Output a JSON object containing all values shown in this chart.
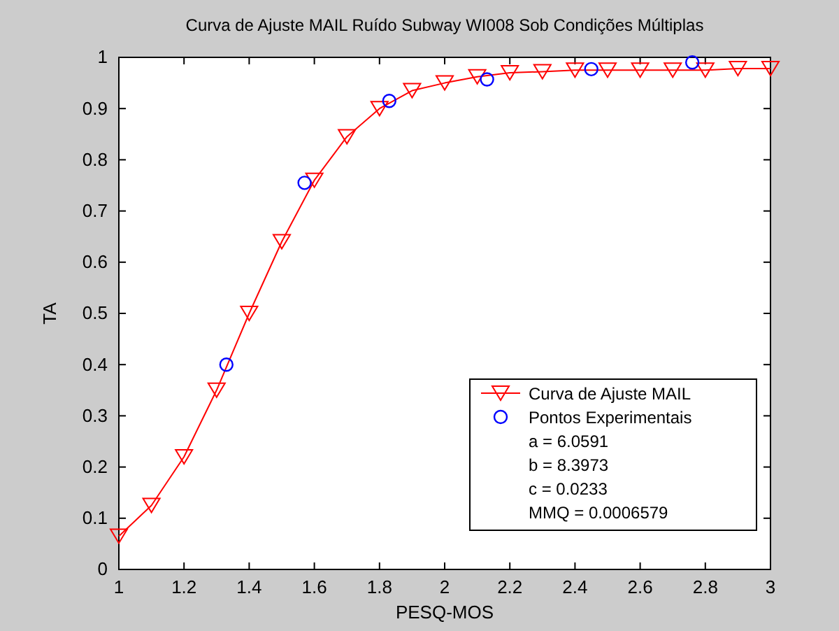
{
  "chart_data": {
    "type": "line",
    "title": "Curva de Ajuste MAIL Ruído Subway WI008 Sob Condições Múltiplas",
    "xlabel": "PESQ-MOS",
    "ylabel": "TA",
    "xlim": [
      1,
      3
    ],
    "xticks": [
      1,
      1.2,
      1.4,
      1.6,
      1.8,
      2,
      2.2,
      2.4,
      2.6,
      2.8,
      3
    ],
    "ylim": [
      0,
      1
    ],
    "yticks": [
      0,
      0.1,
      0.2,
      0.3,
      0.4,
      0.5,
      0.6,
      0.7,
      0.8,
      0.9,
      1
    ],
    "grid": false,
    "legend": "bottom right",
    "series": [
      {
        "name": "Curva de Ajuste MAIL",
        "marker": "triangle",
        "color": "#ff0000",
        "x": [
          1,
          1.1,
          1.2,
          1.3,
          1.4,
          1.5,
          1.6,
          1.7,
          1.8,
          1.9,
          2,
          2.1,
          2.2,
          2.3,
          2.4,
          2.5,
          2.6,
          2.7,
          2.8,
          2.9,
          3
        ],
        "values": [
          0.065,
          0.125,
          0.22,
          0.35,
          0.5,
          0.64,
          0.76,
          0.845,
          0.9,
          0.935,
          0.95,
          0.962,
          0.97,
          0.972,
          0.975,
          0.975,
          0.975,
          0.975,
          0.975,
          0.978,
          0.978
        ]
      },
      {
        "name": "Pontos Experimentais",
        "type": "scatter",
        "marker": "circle",
        "color": "#0000ff",
        "x": [
          1.33,
          1.57,
          1.83,
          2.13,
          2.45,
          2.76
        ],
        "values": [
          0.4,
          0.755,
          0.915,
          0.957,
          0.977,
          0.99
        ]
      }
    ],
    "annotations": [
      "a = 6.0591",
      "b = 8.3973",
      "c = 0.0233",
      "MMQ = 0.0006579"
    ]
  }
}
